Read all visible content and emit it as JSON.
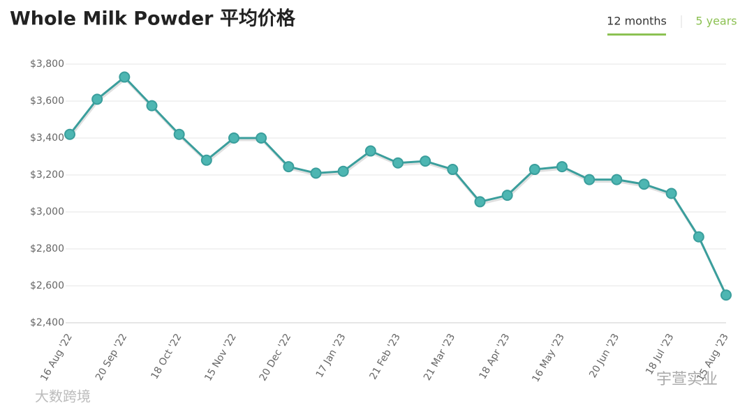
{
  "chart_data": {
    "type": "line",
    "title": "Whole Milk Powder 平均价格",
    "tabs": [
      "12 months",
      "5 years"
    ],
    "watermarks": [
      "大数跨境",
      "宇萱实业"
    ],
    "categories": [
      "16 Aug '22",
      null,
      "20 Sep '22",
      null,
      "18 Oct '22",
      null,
      "15 Nov '22",
      null,
      "20 Dec '22",
      null,
      "17 Jan '23",
      null,
      "21 Feb '23",
      null,
      "21 Mar '23",
      null,
      "18 Apr '23",
      null,
      "16 May '23",
      null,
      "20 Jun '23",
      null,
      "18 Jul '23",
      null,
      "15 Aug '23"
    ],
    "values": [
      3420,
      3610,
      3730,
      3575,
      3420,
      3280,
      3400,
      3400,
      3245,
      3210,
      3220,
      3330,
      3265,
      3275,
      3230,
      3055,
      3090,
      3230,
      3245,
      3175,
      3175,
      3150,
      3100,
      2865,
      2550
    ],
    "color": "#3a9e9c",
    "ylim": [
      2400,
      3800
    ],
    "yticks": [
      {
        "value": 2400,
        "label": "$2,400"
      },
      {
        "value": 2600,
        "label": "$2,600"
      },
      {
        "value": 2800,
        "label": "$2,800"
      },
      {
        "value": 3000,
        "label": "$3,000"
      },
      {
        "value": 3200,
        "label": "$3,200"
      },
      {
        "value": 3400,
        "label": "$3,400"
      },
      {
        "value": 3600,
        "label": "$3,600"
      },
      {
        "value": 3800,
        "label": "$3,800"
      }
    ],
    "grid": true
  }
}
